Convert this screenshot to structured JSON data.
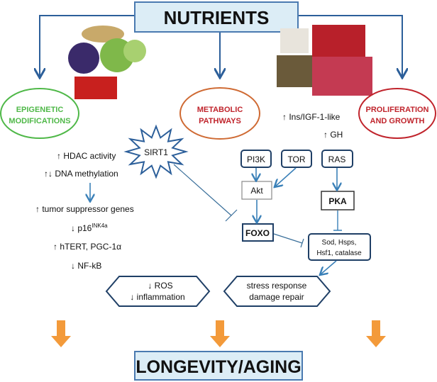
{
  "title": "NUTRIENTS",
  "bottom": "LONGEVITY/AGING",
  "categories": {
    "epigenetic": [
      "EPIGENETIC",
      "MODIFICATIONS"
    ],
    "metabolic": [
      "METABOLIC",
      "PATHWAYS"
    ],
    "proliferation": [
      "PROLIFERATION",
      "AND GROWTH"
    ]
  },
  "epigenetic_effects": {
    "hdac": "↑ HDAC activity",
    "dna": "↑↓ DNA methylation",
    "tumor": "↑ tumor suppressor genes",
    "p16": "↓ p16",
    "p16_sup": "INK4a",
    "htert": "↑ hTERT, PGC-1α",
    "nfkb": "↓ NF-kB"
  },
  "sirt1": "SIRT1",
  "growth_signals": {
    "ins": "↑ Ins/IGF-1-like",
    "gh": "↑ GH"
  },
  "nodes": {
    "pi3k": "PI3K",
    "tor": "TOR",
    "ras": "RAS",
    "akt": "Akt",
    "pka": "PKA",
    "foxo": "FOXO",
    "sod1": "Sod, Hsps,",
    "sod2": "Hsf1, catalase"
  },
  "outcomes": {
    "left": [
      "↓ ROS",
      "↓ inflammation"
    ],
    "right": [
      "stress response",
      "damage repair"
    ]
  },
  "colors": {
    "epigenetic": "#4fb848",
    "metabolic": "#cf6a33",
    "proliferation": "#c0242c",
    "arrow": "#3a80b8",
    "orange_arrow": "#f39a3a",
    "title_fill": "#dcedf6"
  }
}
